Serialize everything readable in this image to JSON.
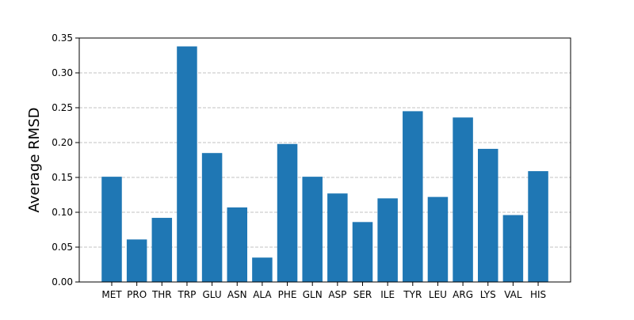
{
  "chart_data": {
    "type": "bar",
    "title": "",
    "xlabel": "",
    "ylabel": "Average RMSD",
    "ylim": [
      0,
      0.35
    ],
    "yticks": [
      "0.00",
      "0.05",
      "0.10",
      "0.15",
      "0.20",
      "0.25",
      "0.30",
      "0.35"
    ],
    "grid": "y-dashed",
    "bar_color": "#1f77b4",
    "categories": [
      "MET",
      "PRO",
      "THR",
      "TRP",
      "GLU",
      "ASN",
      "ALA",
      "PHE",
      "GLN",
      "ASP",
      "SER",
      "ILE",
      "TYR",
      "LEU",
      "ARG",
      "LYS",
      "VAL",
      "HIS"
    ],
    "values": [
      0.151,
      0.061,
      0.092,
      0.338,
      0.185,
      0.107,
      0.035,
      0.198,
      0.151,
      0.127,
      0.086,
      0.12,
      0.245,
      0.122,
      0.236,
      0.191,
      0.096,
      0.159
    ]
  }
}
